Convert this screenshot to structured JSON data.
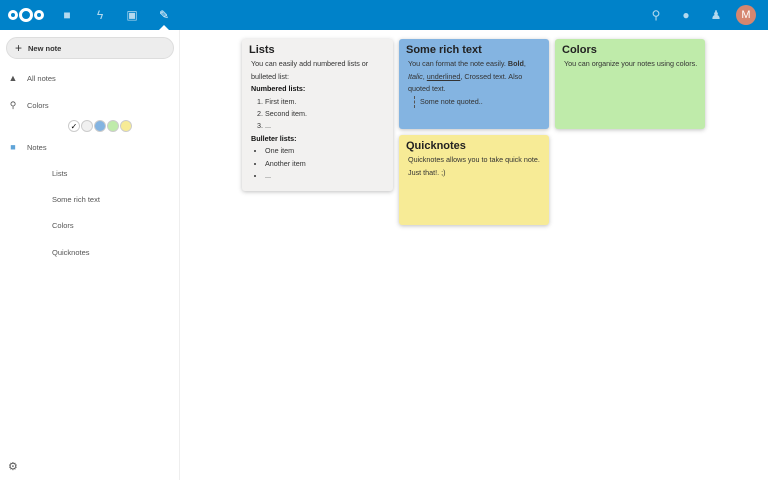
{
  "header": {
    "apps": [
      "files-icon",
      "activity-icon",
      "gallery-icon",
      "notes-icon"
    ],
    "right_icons": [
      "search-icon",
      "bell-icon",
      "contacts-icon"
    ],
    "avatar_initial": "M",
    "brand_color": "#0082c9"
  },
  "sidebar": {
    "new_note": "New note",
    "all_notes": "All notes",
    "colors": "Colors",
    "swatches": [
      "#ffffff",
      "#f0f0f0",
      "#84b4e1",
      "#bfebaa",
      "#f7eb96"
    ],
    "notes": "Notes",
    "items": [
      "Lists",
      "Some rich text",
      "Colors",
      "Quicknotes"
    ]
  },
  "notes": {
    "lists": {
      "title": "Lists",
      "intro": "You can easily add numbered lists or bulleted list:",
      "numbered_heading": "Numbered lists:",
      "numbered": [
        "First item.",
        "Second item.",
        "..."
      ],
      "bullet_heading": "Bulleter lists:",
      "bullets": [
        "One item",
        "Another item",
        "..."
      ],
      "color": "#f2f1f0"
    },
    "rich": {
      "title": "Some rich text",
      "t1": "You can format the note easily. ",
      "bold": "Bold",
      "t2": ", ",
      "italic": "Italic",
      "t3": ", ",
      "underlined": "underlined",
      "t4": ", Crossed text. Also quoted text.",
      "quote": "Some note quoted..",
      "color": "#84b4e1"
    },
    "colors": {
      "title": "Colors",
      "text": "You can organize your notes using colors.",
      "color": "#bfebaa"
    },
    "quick": {
      "title": "Quicknotes",
      "text": "Quicknotes allows you to take quick note. Just that!. ;)",
      "color": "#f7eb96"
    }
  }
}
